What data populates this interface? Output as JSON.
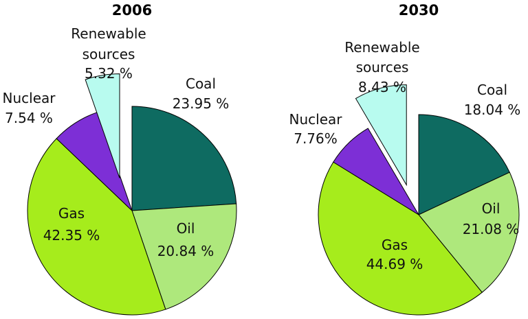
{
  "chart_data": [
    {
      "type": "pie",
      "title": "2006",
      "slices": [
        {
          "label": "Coal",
          "value": 23.95,
          "value_text": "23.95 %",
          "color": "#0e6b61"
        },
        {
          "label": "Oil",
          "value": 20.84,
          "value_text": "20.84 %",
          "color": "#aee87c"
        },
        {
          "label": "Gas",
          "value": 42.35,
          "value_text": "42.35 %",
          "color": "#a6ec1c"
        },
        {
          "label": "Nuclear",
          "value": 7.54,
          "value_text": "7.54 %",
          "color": "#7d2fd6"
        },
        {
          "label": "Renewable sources",
          "value": 5.32,
          "value_text": "5.32 %",
          "color": "#b8fbef",
          "exploded": true
        }
      ]
    },
    {
      "type": "pie",
      "title": "2030",
      "slices": [
        {
          "label": "Coal",
          "value": 18.04,
          "value_text": "18.04 %",
          "color": "#0e6b61"
        },
        {
          "label": "Oil",
          "value": 21.08,
          "value_text": "21.08 %",
          "color": "#aee87c"
        },
        {
          "label": "Gas",
          "value": 44.69,
          "value_text": "44.69 %",
          "color": "#a6ec1c"
        },
        {
          "label": "Nuclear",
          "value": 7.76,
          "value_text": "7.76%",
          "color": "#7d2fd6"
        },
        {
          "label": "Renewable sources",
          "value": 8.43,
          "value_text": "8.43 %",
          "color": "#b8fbef",
          "exploded": true
        }
      ]
    }
  ]
}
